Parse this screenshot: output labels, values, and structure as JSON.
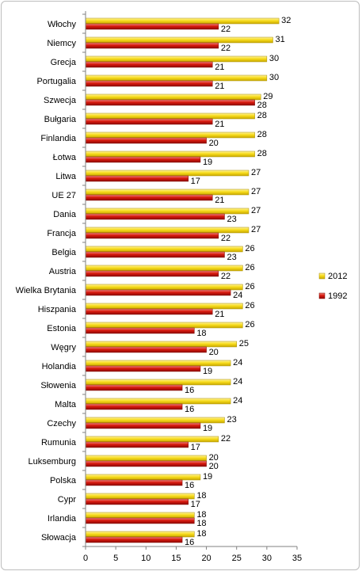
{
  "chart_data": {
    "type": "bar",
    "orientation": "horizontal",
    "categories": [
      "Włochy",
      "Niemcy",
      "Grecja",
      "Portugalia",
      "Szwecja",
      "Bułgaria",
      "Finlandia",
      "Łotwa",
      "Litwa",
      "UE 27",
      "Dania",
      "Francja",
      "Belgia",
      "Austria",
      "Wielka Brytania",
      "Hiszpania",
      "Estonia",
      "Węgry",
      "Holandia",
      "Słowenia",
      "Malta",
      "Czechy",
      "Rumunia",
      "Luksemburg",
      "Polska",
      "Cypr",
      "Irlandia",
      "Słowacja"
    ],
    "series": [
      {
        "name": "2012",
        "color": "#f2d200",
        "values": [
          32,
          31,
          30,
          30,
          29,
          28,
          28,
          28,
          27,
          27,
          27,
          27,
          26,
          26,
          26,
          26,
          26,
          25,
          24,
          24,
          24,
          23,
          22,
          20,
          19,
          18,
          18,
          18
        ]
      },
      {
        "name": "1992",
        "color": "#d91a0f",
        "values": [
          22,
          22,
          21,
          21,
          28,
          21,
          20,
          19,
          17,
          21,
          23,
          22,
          23,
          22,
          24,
          21,
          18,
          20,
          19,
          16,
          16,
          19,
          17,
          20,
          16,
          17,
          18,
          16
        ]
      }
    ],
    "xlim": [
      0,
      35
    ],
    "xticks": [
      "0",
      "5",
      "10",
      "15",
      "20",
      "25",
      "30",
      "35"
    ],
    "grid": false,
    "legend_position": "right"
  }
}
